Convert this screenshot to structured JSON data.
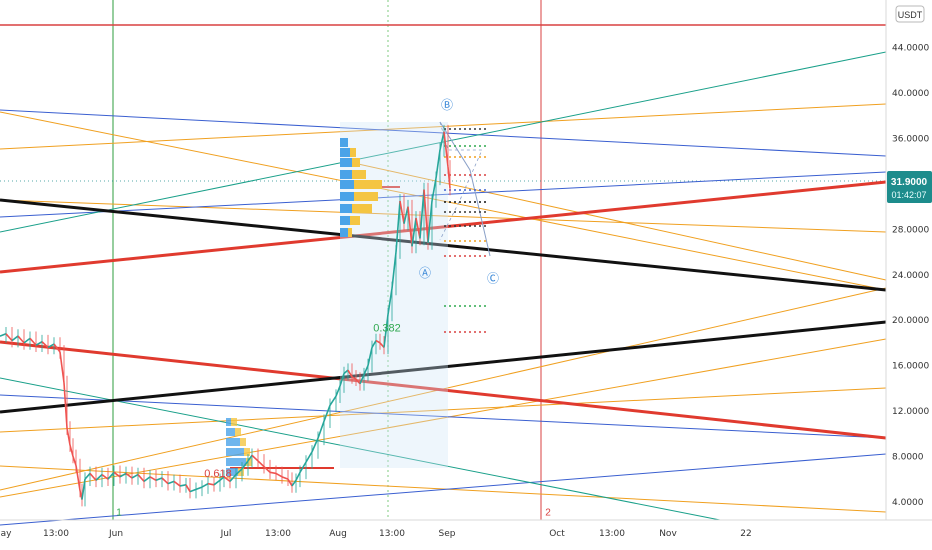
{
  "currency_label": "USDT",
  "price_tag": {
    "value": "31.9000",
    "countdown": "01:42:07"
  },
  "chart_data": {
    "type": "line",
    "title": "",
    "xlabel": "",
    "ylabel": "",
    "ylim": [
      2.4,
      48.2
    ],
    "grid": false,
    "y_ticks": [
      "44.0000",
      "40.0000",
      "36.0000",
      "32.0000",
      "28.0000",
      "24.0000",
      "20.0000",
      "16.0000",
      "12.0000",
      "8.0000",
      "4.0000"
    ],
    "x_ticks": [
      "ay",
      "13:00",
      "Jun",
      "Jul",
      "13:00",
      "Aug",
      "13:00",
      "Sep",
      "Oct",
      "13:00",
      "Nov",
      "22"
    ],
    "series": [
      {
        "values": [
          [
            0,
            18.6
          ],
          [
            6,
            18.8
          ],
          [
            12,
            18.2
          ],
          [
            18,
            18.6
          ],
          [
            24,
            18.0
          ],
          [
            30,
            18.4
          ],
          [
            36,
            17.8
          ],
          [
            42,
            18.1
          ],
          [
            48,
            17.6
          ],
          [
            54,
            17.9
          ],
          [
            60,
            17.2
          ],
          [
            64,
            14.5
          ],
          [
            67,
            10.5
          ],
          [
            70,
            9.0
          ],
          [
            73,
            8.0
          ],
          [
            76,
            7.2
          ],
          [
            80,
            5.0
          ],
          [
            82,
            4.2
          ],
          [
            85,
            6.0
          ],
          [
            90,
            6.5
          ],
          [
            96,
            5.9
          ],
          [
            102,
            6.4
          ],
          [
            108,
            6.0
          ],
          [
            114,
            6.6
          ],
          [
            120,
            6.2
          ],
          [
            126,
            6.5
          ],
          [
            132,
            6.1
          ],
          [
            138,
            6.4
          ],
          [
            144,
            5.8
          ],
          [
            150,
            6.2
          ],
          [
            156,
            5.9
          ],
          [
            162,
            6.1
          ],
          [
            168,
            5.6
          ],
          [
            174,
            5.8
          ],
          [
            180,
            5.4
          ],
          [
            186,
            5.5
          ],
          [
            190,
            4.9
          ],
          [
            196,
            5.1
          ],
          [
            202,
            5.3
          ],
          [
            208,
            5.6
          ],
          [
            214,
            5.5
          ],
          [
            220,
            5.9
          ],
          [
            224,
            6.2
          ],
          [
            230,
            5.8
          ],
          [
            236,
            6.4
          ],
          [
            242,
            6.9
          ],
          [
            248,
            7.6
          ],
          [
            252,
            8.1
          ],
          [
            258,
            7.6
          ],
          [
            264,
            7.1
          ],
          [
            270,
            6.6
          ],
          [
            276,
            6.5
          ],
          [
            282,
            6.2
          ],
          [
            288,
            6.0
          ],
          [
            292,
            5.4
          ],
          [
            296,
            5.9
          ],
          [
            300,
            6.6
          ],
          [
            306,
            7.5
          ],
          [
            312,
            8.4
          ],
          [
            318,
            9.6
          ],
          [
            324,
            11.1
          ],
          [
            330,
            12.5
          ],
          [
            336,
            13.3
          ],
          [
            340,
            14.2
          ],
          [
            344,
            15.3
          ],
          [
            348,
            15.6
          ],
          [
            352,
            15.0
          ],
          [
            356,
            14.8
          ],
          [
            360,
            14.4
          ],
          [
            364,
            15.2
          ],
          [
            368,
            16.0
          ],
          [
            372,
            17.6
          ],
          [
            376,
            18.2
          ],
          [
            380,
            18.0
          ],
          [
            384,
            17.6
          ],
          [
            388,
            20.5
          ],
          [
            392,
            22.8
          ],
          [
            396,
            26.0
          ],
          [
            400,
            30.5
          ],
          [
            404,
            28.5
          ],
          [
            408,
            30.0
          ],
          [
            412,
            26.5
          ],
          [
            416,
            29.0
          ],
          [
            420,
            27.2
          ],
          [
            424,
            31.5
          ],
          [
            428,
            26.8
          ],
          [
            432,
            30.5
          ],
          [
            436,
            32.5
          ],
          [
            440,
            35.0
          ],
          [
            444,
            36.6
          ],
          [
            448,
            33.5
          ],
          [
            450,
            31.6
          ]
        ]
      }
    ],
    "annotations": [
      {
        "text": "Ⓑ",
        "x": 447,
        "y": 38.6
      },
      {
        "text": "Ⓐ",
        "x": 425,
        "y": 23.8
      },
      {
        "text": "Ⓒ",
        "x": 493,
        "y": 23.3
      },
      {
        "text": "0.382",
        "x": 387,
        "y": 19.0
      },
      {
        "text": "0.618",
        "x": 218,
        "y": 6.2
      },
      {
        "text": "1",
        "x": 119,
        "y": 2.8
      },
      {
        "text": "2",
        "x": 548,
        "y": 2.8
      }
    ]
  }
}
